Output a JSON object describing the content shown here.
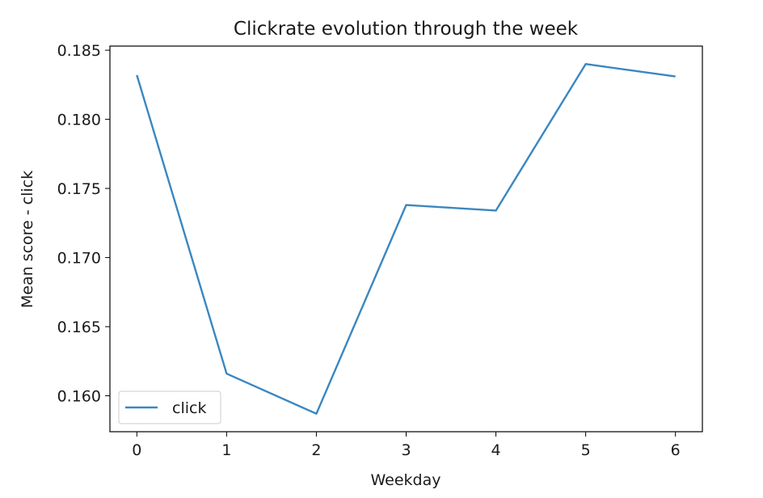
{
  "chart_data": {
    "type": "line",
    "title": "Clickrate evolution through the week",
    "xlabel": "Weekday",
    "ylabel": "Mean score - click",
    "x": [
      0,
      1,
      2,
      3,
      4,
      5,
      6
    ],
    "xticks": [
      "0",
      "1",
      "2",
      "3",
      "4",
      "5",
      "6"
    ],
    "yticks": [
      "0.160",
      "0.165",
      "0.170",
      "0.175",
      "0.180",
      "0.185"
    ],
    "ytick_values": [
      0.16,
      0.165,
      0.17,
      0.175,
      0.18,
      0.185
    ],
    "xlim": [
      -0.3,
      6.3
    ],
    "ylim": [
      0.1574,
      0.1853
    ],
    "grid": false,
    "legend_position": "lower-left",
    "series": [
      {
        "name": "click",
        "color": "#3a87c0",
        "values": [
          0.1832,
          0.1616,
          0.1587,
          0.1738,
          0.1734,
          0.184,
          0.1831
        ]
      }
    ]
  }
}
